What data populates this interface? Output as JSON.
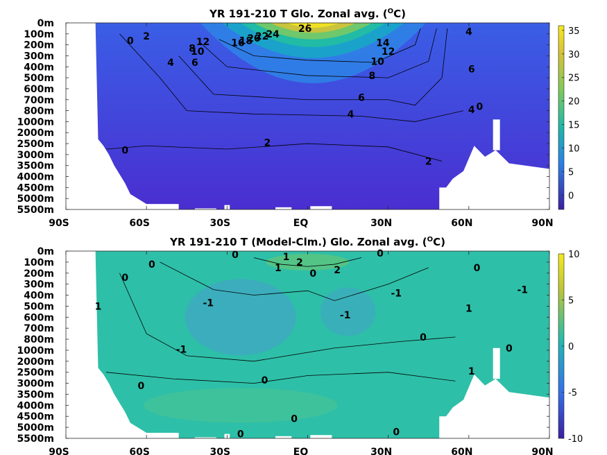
{
  "chart_data": [
    {
      "type": "heatmap",
      "title": "YR 191-210 T Glo. Zonal avg. (",
      "title_sup": "O",
      "title_end": "C)",
      "xticks": [
        "90S",
        "60S",
        "30S",
        "EQ",
        "30N",
        "60N",
        "90N"
      ],
      "yticks": [
        "0m",
        "100m",
        "200m",
        "300m",
        "400m",
        "500m",
        "600m",
        "700m",
        "800m",
        "1000m",
        "2000m",
        "2500m",
        "3000m",
        "3500m",
        "4000m",
        "4500m",
        "5000m",
        "5500m"
      ],
      "xlim": [
        -90,
        90
      ],
      "colorbar": {
        "min": -3,
        "max": 36,
        "ticks": [
          "35",
          "30",
          "25",
          "20",
          "15",
          "10",
          "5",
          "0"
        ],
        "tick_values": [
          35,
          30,
          25,
          20,
          15,
          10,
          5,
          0
        ]
      },
      "contour_labels": [
        {
          "text": "26",
          "lat": -1,
          "depth": 0.5
        },
        {
          "text": "24",
          "lat": -13,
          "depth": 1.0
        },
        {
          "text": "22",
          "lat": -17,
          "depth": 1.2
        },
        {
          "text": "20",
          "lat": -20,
          "depth": 1.4
        },
        {
          "text": "18",
          "lat": -23,
          "depth": 1.6
        },
        {
          "text": "16",
          "lat": -26,
          "depth": 1.8
        },
        {
          "text": "14",
          "lat": 28,
          "depth": 1.8
        },
        {
          "text": "12",
          "lat": 30,
          "depth": 2.6
        },
        {
          "text": "10",
          "lat": 26,
          "depth": 3.5
        },
        {
          "text": "8",
          "lat": 24,
          "depth": 4.8
        },
        {
          "text": "6",
          "lat": 20,
          "depth": 6.8
        },
        {
          "text": "4",
          "lat": 16,
          "depth": 8.3
        },
        {
          "text": "2",
          "lat": -15,
          "depth": 10.9
        },
        {
          "text": "0",
          "lat": -68,
          "depth": 11.6
        },
        {
          "text": "2",
          "lat": 45,
          "depth": 12.6
        },
        {
          "text": "12",
          "lat": -39,
          "depth": 1.7
        },
        {
          "text": "10",
          "lat": -41,
          "depth": 2.6
        },
        {
          "text": "8",
          "lat": -43,
          "depth": 2.3
        },
        {
          "text": "6",
          "lat": -42,
          "depth": 3.6
        },
        {
          "text": "4",
          "lat": -51,
          "depth": 3.6
        },
        {
          "text": "2",
          "lat": -60,
          "depth": 1.2
        },
        {
          "text": "0",
          "lat": -66,
          "depth": 1.6
        },
        {
          "text": "4",
          "lat": 60,
          "depth": 0.8
        },
        {
          "text": "6",
          "lat": 61,
          "depth": 4.2
        },
        {
          "text": "4",
          "lat": 61,
          "depth": 7.9
        },
        {
          "text": "0",
          "lat": 64,
          "depth": 7.6
        }
      ]
    },
    {
      "type": "heatmap",
      "title": "YR 191-210 T (Model-Clm.) Glo. Zonal avg. (",
      "title_sup": "O",
      "title_end": "C)",
      "xticks": [
        "90S",
        "60S",
        "30S",
        "EQ",
        "30N",
        "60N",
        "90N"
      ],
      "yticks": [
        "0m",
        "100m",
        "200m",
        "300m",
        "400m",
        "500m",
        "600m",
        "700m",
        "800m",
        "1000m",
        "2000m",
        "2500m",
        "3000m",
        "3500m",
        "4000m",
        "4500m",
        "5000m",
        "5500m"
      ],
      "xlim": [
        -90,
        90
      ],
      "colorbar": {
        "min": -10,
        "max": 10,
        "ticks": [
          "10",
          "5",
          "0",
          "-5",
          "-10"
        ],
        "tick_values": [
          10,
          5,
          0,
          -5,
          -10
        ]
      },
      "contour_labels": [
        {
          "text": "0",
          "lat": -27,
          "depth": 0.3
        },
        {
          "text": "1",
          "lat": -8,
          "depth": 0.5
        },
        {
          "text": "2",
          "lat": -3,
          "depth": 1.0
        },
        {
          "text": "1",
          "lat": -11,
          "depth": 1.5
        },
        {
          "text": "0",
          "lat": 2,
          "depth": 2.0
        },
        {
          "text": "2",
          "lat": 11,
          "depth": 1.7
        },
        {
          "text": "0",
          "lat": 27,
          "depth": 0.2
        },
        {
          "text": "0",
          "lat": -58,
          "depth": 1.2
        },
        {
          "text": "0",
          "lat": -68,
          "depth": 2.4
        },
        {
          "text": "1",
          "lat": -78,
          "depth": 5.0
        },
        {
          "text": "-1",
          "lat": -37,
          "depth": 4.7
        },
        {
          "text": "-1",
          "lat": 14,
          "depth": 5.8
        },
        {
          "text": "-1",
          "lat": 33,
          "depth": 3.8
        },
        {
          "text": "-1",
          "lat": -47,
          "depth": 8.9
        },
        {
          "text": "0",
          "lat": 43,
          "depth": 7.8
        },
        {
          "text": "0",
          "lat": 63,
          "depth": 1.5
        },
        {
          "text": "1",
          "lat": 60,
          "depth": 5.2
        },
        {
          "text": "-1",
          "lat": 80,
          "depth": 3.5
        },
        {
          "text": "0",
          "lat": 75,
          "depth": 8.8
        },
        {
          "text": "1",
          "lat": 61,
          "depth": 10.9
        },
        {
          "text": "0",
          "lat": -16,
          "depth": 11.7
        },
        {
          "text": "0",
          "lat": -62,
          "depth": 12.2
        },
        {
          "text": "0",
          "lat": -5,
          "depth": 15.2
        },
        {
          "text": "0",
          "lat": -25,
          "depth": 16.6
        },
        {
          "text": "0",
          "lat": 33,
          "depth": 16.4
        }
      ]
    }
  ],
  "colors": {
    "top_field": [
      "#4a2ed0",
      "#3a58e8",
      "#2e84e6",
      "#18a8c4",
      "#22bfa0",
      "#7cca60",
      "#d9c235",
      "#f7e520"
    ],
    "bottom_field": [
      "#3fa9c0",
      "#2ebfa8",
      "#4cc590",
      "#6cc870"
    ],
    "mask": "#ffffff"
  }
}
